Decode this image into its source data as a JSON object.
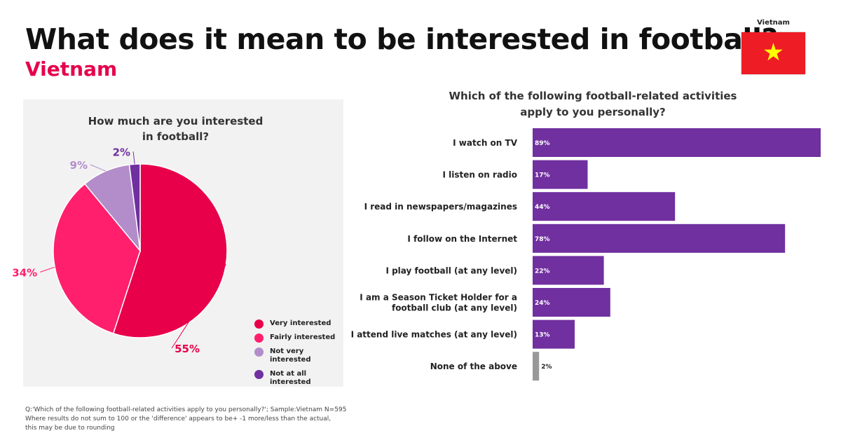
{
  "header": {
    "title": "What does it mean to be interested in football?",
    "subtitle": "Vietnam",
    "flag_label": "Vietnam"
  },
  "colors": {
    "very_interested": "#e8004a",
    "fairly_interested": "#ff1f6d",
    "not_very_interested": "#b38dc9",
    "not_at_all_interested": "#7030a0",
    "bar_purple": "#7030a0",
    "bar_grey": "#999999",
    "flag_red": "#ee1c25",
    "flag_star": "#ffff00",
    "subtitle_red": "#e6004c"
  },
  "chart_data": [
    {
      "type": "pie",
      "title_lines": [
        "How much are you interested",
        "in football?"
      ],
      "labels": [
        "Very interested",
        "Fairly interested",
        "Not very interested",
        "Not at all interested"
      ],
      "values": [
        55,
        34,
        9,
        2
      ],
      "value_labels": [
        "55%",
        "34%",
        "9%",
        "2%"
      ],
      "legend_lines": [
        [
          "Very interested"
        ],
        [
          "Fairly interested"
        ],
        [
          "Not very interested"
        ],
        [
          "Not at all",
          "interested"
        ]
      ],
      "colors": [
        "#e8004a",
        "#ff1f6d",
        "#b38dc9",
        "#7030a0"
      ],
      "legend_position": "bottom-right"
    },
    {
      "type": "bar",
      "orientation": "horizontal",
      "title_lines": [
        "Which of the following football-related activities",
        "apply to you personally?"
      ],
      "categories": [
        [
          "I watch on TV"
        ],
        [
          "I listen on radio"
        ],
        [
          "I read in newspapers/magazines"
        ],
        [
          "I follow on the Internet"
        ],
        [
          "I play football (at any level)"
        ],
        [
          "I am a Season Ticket Holder for a",
          "football club (at any level)"
        ],
        [
          "I attend live matches (at any level)"
        ],
        [
          "None of the above"
        ]
      ],
      "values": [
        89,
        17,
        44,
        78,
        22,
        24,
        13,
        2
      ],
      "value_labels": [
        "89%",
        "17%",
        "44%",
        "78%",
        "22%",
        "24%",
        "13%",
        "2%"
      ],
      "bar_colors": [
        "#7030a0",
        "#7030a0",
        "#7030a0",
        "#7030a0",
        "#7030a0",
        "#7030a0",
        "#7030a0",
        "#999999"
      ],
      "xlim": [
        0,
        89
      ]
    }
  ],
  "footnote": {
    "line1": "Q:'Which of the following football-related activities apply to you personally?'; Sample:Vietnam N=595",
    "line2": "Where results do not sum to 100 or the 'difference' appears to be+ -1 more/less than the actual,",
    "line3": "this may be due to rounding"
  }
}
